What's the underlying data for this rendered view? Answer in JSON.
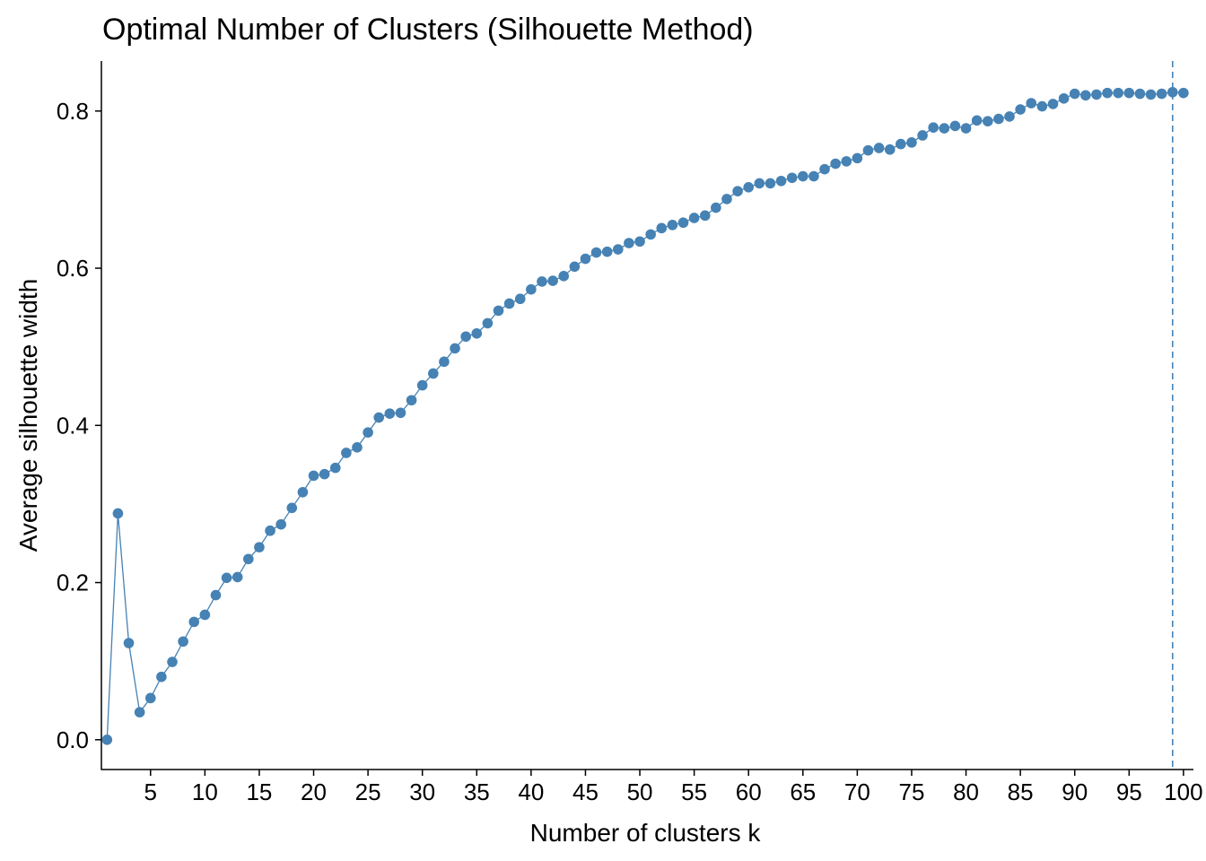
{
  "chart_data": {
    "type": "line",
    "title": "Optimal Number of Clusters (Silhouette Method)",
    "xlabel": "Number of clusters k",
    "ylabel": "Average silhouette width",
    "xlim": [
      1,
      100
    ],
    "ylim": [
      0,
      0.8
    ],
    "xticks": [
      "5",
      "10",
      "15",
      "20",
      "25",
      "30",
      "35",
      "40",
      "45",
      "50",
      "55",
      "60",
      "65",
      "70",
      "75",
      "80",
      "85",
      "90",
      "95",
      "100"
    ],
    "yticks": [
      "0.0",
      "0.2",
      "0.4",
      "0.6",
      "0.8"
    ],
    "optimal_k": 99,
    "grid": false,
    "colors": {
      "series": "#4682B4",
      "marker": "#4682B4",
      "vline": "#4682B4",
      "axis": "#000000"
    },
    "series": [
      {
        "name": "Average silhouette width",
        "x": [
          1,
          2,
          3,
          4,
          5,
          6,
          7,
          8,
          9,
          10,
          11,
          12,
          13,
          14,
          15,
          16,
          17,
          18,
          19,
          20,
          21,
          22,
          23,
          24,
          25,
          26,
          27,
          28,
          29,
          30,
          31,
          32,
          33,
          34,
          35,
          36,
          37,
          38,
          39,
          40,
          41,
          42,
          43,
          44,
          45,
          46,
          47,
          48,
          49,
          50,
          51,
          52,
          53,
          54,
          55,
          56,
          57,
          58,
          59,
          60,
          61,
          62,
          63,
          64,
          65,
          66,
          67,
          68,
          69,
          70,
          71,
          72,
          73,
          74,
          75,
          76,
          77,
          78,
          79,
          80,
          81,
          82,
          83,
          84,
          85,
          86,
          87,
          88,
          89,
          90,
          91,
          92,
          93,
          94,
          95,
          96,
          97,
          98,
          99,
          100
        ],
        "values": [
          0.0,
          0.288,
          0.123,
          0.035,
          0.053,
          0.08,
          0.099,
          0.125,
          0.15,
          0.159,
          0.184,
          0.206,
          0.207,
          0.23,
          0.245,
          0.266,
          0.274,
          0.295,
          0.315,
          0.336,
          0.338,
          0.346,
          0.365,
          0.372,
          0.391,
          0.41,
          0.415,
          0.416,
          0.432,
          0.451,
          0.466,
          0.481,
          0.498,
          0.513,
          0.517,
          0.53,
          0.546,
          0.555,
          0.561,
          0.573,
          0.583,
          0.584,
          0.59,
          0.602,
          0.612,
          0.62,
          0.621,
          0.624,
          0.632,
          0.634,
          0.643,
          0.651,
          0.655,
          0.658,
          0.664,
          0.667,
          0.677,
          0.688,
          0.698,
          0.703,
          0.708,
          0.708,
          0.711,
          0.715,
          0.717,
          0.717,
          0.726,
          0.733,
          0.736,
          0.74,
          0.75,
          0.753,
          0.751,
          0.758,
          0.76,
          0.769,
          0.779,
          0.778,
          0.781,
          0.778,
          0.788,
          0.787,
          0.79,
          0.793,
          0.802,
          0.81,
          0.806,
          0.809,
          0.816,
          0.822,
          0.82,
          0.821,
          0.823,
          0.823,
          0.823,
          0.822,
          0.821,
          0.822,
          0.824,
          0.823
        ]
      }
    ]
  }
}
